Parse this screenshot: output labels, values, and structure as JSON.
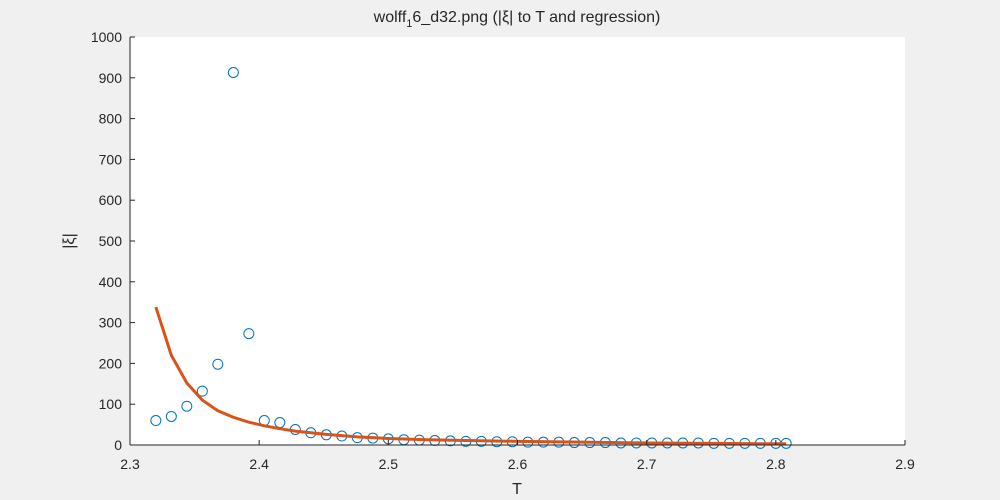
{
  "chart_data": {
    "type": "scatter",
    "title": "wolff",
    "title_subscript": "1",
    "title_rest": "6_d32.png (|ξ| to T and regression)",
    "xlabel": "T",
    "ylabel": "|ξ|",
    "xlim": [
      2.3,
      2.9
    ],
    "ylim": [
      0,
      1000
    ],
    "xticks": [
      "2.3",
      "2.4",
      "2.5",
      "2.6",
      "2.7",
      "2.8",
      "2.9"
    ],
    "yticks": [
      "0",
      "100",
      "200",
      "300",
      "400",
      "500",
      "600",
      "700",
      "800",
      "900",
      "1000"
    ],
    "grid": false,
    "series": [
      {
        "kind": "scatter",
        "marker": "circle-open",
        "color": "#0072bd",
        "x": [
          2.32,
          2.332,
          2.344,
          2.356,
          2.368,
          2.38,
          2.392,
          2.404,
          2.416,
          2.428,
          2.44,
          2.452,
          2.464,
          2.476,
          2.488,
          2.5,
          2.512,
          2.524,
          2.536,
          2.548,
          2.56,
          2.572,
          2.584,
          2.596,
          2.608,
          2.62,
          2.632,
          2.644,
          2.656,
          2.668,
          2.68,
          2.692,
          2.704,
          2.716,
          2.728,
          2.74,
          2.752,
          2.764,
          2.776,
          2.788,
          2.8,
          2.808
        ],
        "y": [
          60,
          70,
          95,
          132,
          198,
          913,
          273,
          60,
          55,
          38,
          30,
          25,
          22,
          18,
          17,
          15,
          13,
          12,
          11,
          10,
          9,
          9,
          8,
          8,
          7,
          7,
          7,
          6,
          6,
          6,
          5,
          5,
          5,
          5,
          5,
          5,
          4,
          4,
          4,
          4,
          4,
          4
        ]
      },
      {
        "kind": "line",
        "color": "#d95319",
        "x": [
          2.32,
          2.332,
          2.344,
          2.356,
          2.368,
          2.38,
          2.392,
          2.404,
          2.416,
          2.428,
          2.44,
          2.452,
          2.464,
          2.476,
          2.488,
          2.5,
          2.53,
          2.56,
          2.6,
          2.65,
          2.7,
          2.75,
          2.8,
          2.808
        ],
        "y": [
          338,
          220,
          152,
          110,
          84,
          68,
          56,
          47,
          40,
          34,
          30,
          26,
          23,
          20,
          18,
          16,
          13,
          11,
          9,
          7,
          5,
          4,
          3,
          3
        ]
      }
    ]
  }
}
